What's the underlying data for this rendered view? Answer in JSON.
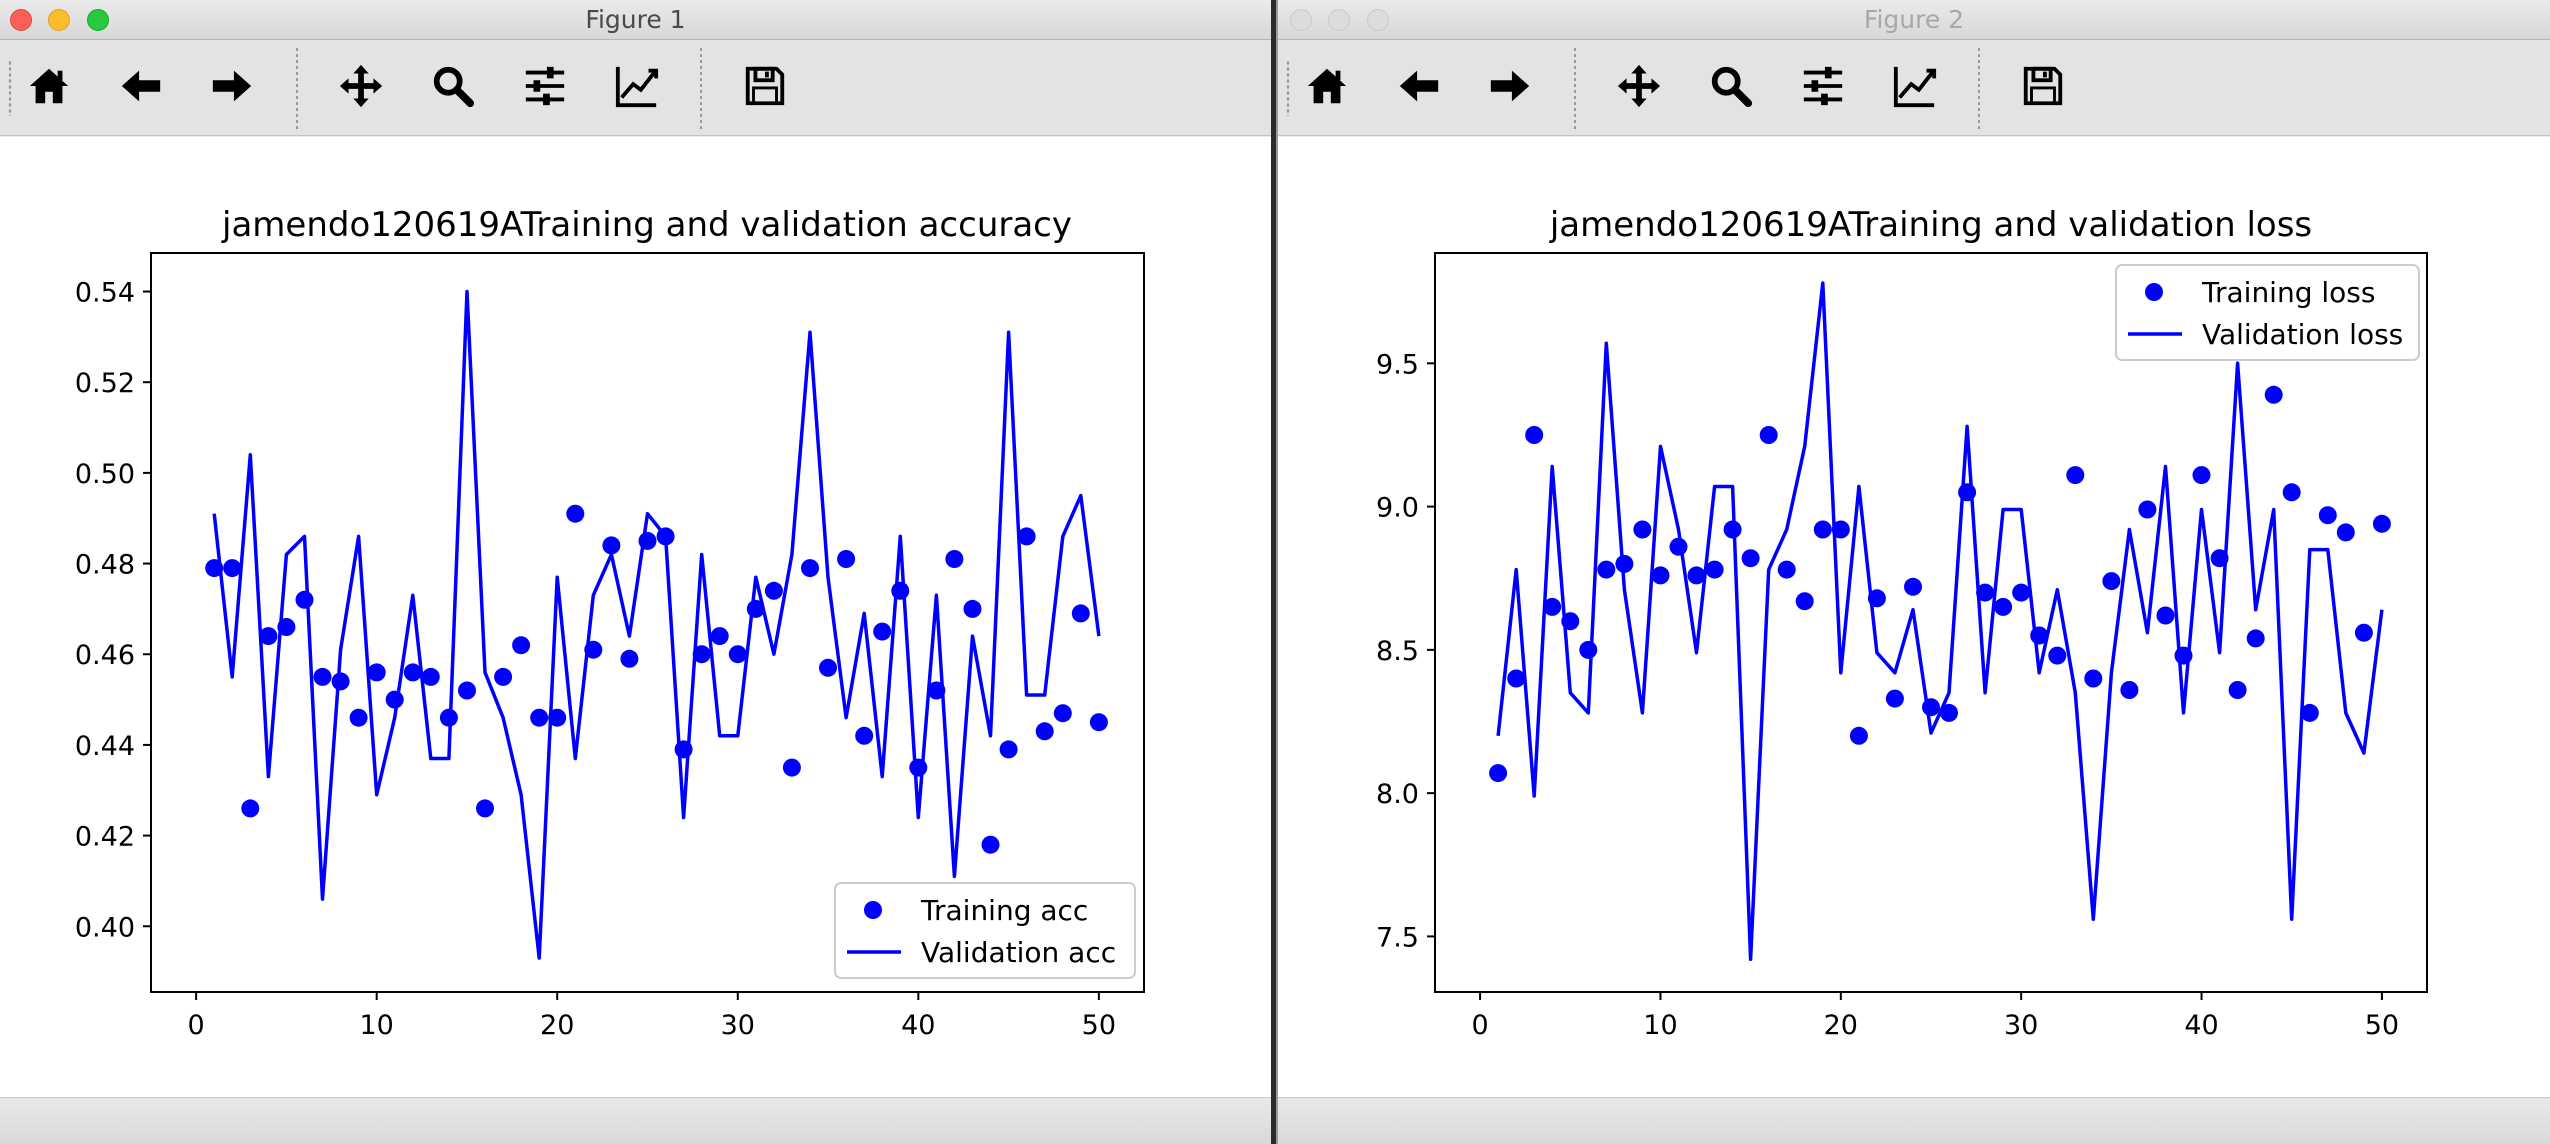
{
  "windows": [
    {
      "title": "Figure 1",
      "active": true,
      "toolbar": [
        "home-icon",
        "back-arrow-icon",
        "forward-arrow-icon",
        "move-icon",
        "zoom-icon",
        "configure-subplots-icon",
        "edit-axes-icon",
        "save-icon"
      ]
    },
    {
      "title": "Figure 2",
      "active": false,
      "toolbar": [
        "home-icon",
        "back-arrow-icon",
        "forward-arrow-icon",
        "move-icon",
        "zoom-icon",
        "configure-subplots-icon",
        "edit-axes-icon",
        "save-icon"
      ]
    }
  ],
  "colors": {
    "series": "#0000ff",
    "text": "#000000",
    "canvas": "#ffffff"
  },
  "chart_data": [
    {
      "type": "scatter+line",
      "title": "jamendo120619ATraining and validation accuracy",
      "xlabel": "",
      "ylabel": "",
      "xlim": [
        -2.5,
        52.5
      ],
      "ylim": [
        0.3855,
        0.5485
      ],
      "xticks": [
        0,
        10,
        20,
        30,
        40,
        50
      ],
      "xtick_labels": [
        "0",
        "10",
        "20",
        "30",
        "40",
        "50"
      ],
      "yticks": [
        0.4,
        0.42,
        0.44,
        0.46,
        0.48,
        0.5,
        0.52,
        0.54
      ],
      "ytick_labels": [
        "0.40",
        "0.42",
        "0.44",
        "0.46",
        "0.48",
        "0.50",
        "0.52",
        "0.54"
      ],
      "legend": {
        "placement": "lower-right",
        "entries": [
          "Training acc",
          "Validation acc"
        ]
      },
      "x": [
        1,
        2,
        3,
        4,
        5,
        6,
        7,
        8,
        9,
        10,
        11,
        12,
        13,
        14,
        15,
        16,
        17,
        18,
        19,
        20,
        21,
        22,
        23,
        24,
        25,
        26,
        27,
        28,
        29,
        30,
        31,
        32,
        33,
        34,
        35,
        36,
        37,
        38,
        39,
        40,
        41,
        42,
        43,
        44,
        45,
        46,
        47,
        48,
        49,
        50
      ],
      "series": [
        {
          "name": "Training acc",
          "style": "dots",
          "values": [
            0.479,
            0.479,
            0.426,
            0.464,
            0.466,
            0.472,
            0.455,
            0.454,
            0.446,
            0.456,
            0.45,
            0.456,
            0.455,
            0.446,
            0.452,
            0.426,
            0.455,
            0.462,
            0.446,
            0.446,
            0.491,
            0.461,
            0.484,
            0.459,
            0.485,
            0.486,
            0.439,
            0.46,
            0.464,
            0.46,
            0.47,
            0.474,
            0.435,
            0.479,
            0.457,
            0.481,
            0.442,
            0.465,
            0.474,
            0.435,
            0.452,
            0.481,
            0.47,
            0.418,
            0.439,
            0.486,
            0.443,
            0.447,
            0.469,
            0.445
          ]
        },
        {
          "name": "Validation acc",
          "style": "line",
          "values": [
            0.491,
            0.455,
            0.504,
            0.433,
            0.482,
            0.486,
            0.406,
            0.461,
            0.486,
            0.429,
            0.446,
            0.473,
            0.437,
            0.437,
            0.54,
            0.456,
            0.446,
            0.429,
            0.393,
            0.477,
            0.437,
            0.473,
            0.482,
            0.464,
            0.491,
            0.486,
            0.424,
            0.482,
            0.442,
            0.442,
            0.477,
            0.46,
            0.482,
            0.531,
            0.477,
            0.446,
            0.469,
            0.433,
            0.486,
            0.424,
            0.473,
            0.411,
            0.464,
            0.442,
            0.531,
            0.451,
            0.451,
            0.486,
            0.495,
            0.464
          ]
        }
      ]
    },
    {
      "type": "scatter+line",
      "title": "jamendo120619ATraining and validation loss",
      "xlabel": "",
      "ylabel": "",
      "xlim": [
        -2.5,
        52.5
      ],
      "ylim": [
        7.306,
        9.885
      ],
      "xticks": [
        0,
        10,
        20,
        30,
        40,
        50
      ],
      "xtick_labels": [
        "0",
        "10",
        "20",
        "30",
        "40",
        "50"
      ],
      "yticks": [
        7.5,
        8.0,
        8.5,
        9.0,
        9.5
      ],
      "ytick_labels": [
        "7.5",
        "8.0",
        "8.5",
        "9.0",
        "9.5"
      ],
      "legend": {
        "placement": "upper-right",
        "entries": [
          "Training loss",
          "Validation loss"
        ]
      },
      "x": [
        1,
        2,
        3,
        4,
        5,
        6,
        7,
        8,
        9,
        10,
        11,
        12,
        13,
        14,
        15,
        16,
        17,
        18,
        19,
        20,
        21,
        22,
        23,
        24,
        25,
        26,
        27,
        28,
        29,
        30,
        31,
        32,
        33,
        34,
        35,
        36,
        37,
        38,
        39,
        40,
        41,
        42,
        43,
        44,
        45,
        46,
        47,
        48,
        49,
        50
      ],
      "series": [
        {
          "name": "Training loss",
          "style": "dots",
          "values": [
            8.07,
            8.4,
            9.25,
            8.65,
            8.6,
            8.5,
            8.78,
            8.8,
            8.92,
            8.76,
            8.86,
            8.76,
            8.78,
            8.92,
            8.82,
            9.25,
            8.78,
            8.67,
            8.92,
            8.92,
            8.2,
            8.68,
            8.33,
            8.72,
            8.3,
            8.28,
            9.05,
            8.7,
            8.65,
            8.7,
            8.55,
            8.48,
            9.11,
            8.4,
            8.74,
            8.36,
            8.99,
            8.62,
            8.48,
            9.11,
            8.82,
            8.36,
            8.54,
            9.39,
            9.05,
            8.28,
            8.97,
            8.91,
            8.56,
            8.94
          ]
        },
        {
          "name": "Validation loss",
          "style": "line",
          "values": [
            8.2,
            8.78,
            7.99,
            9.14,
            8.35,
            8.28,
            9.57,
            8.71,
            8.28,
            9.21,
            8.92,
            8.49,
            9.07,
            9.07,
            7.42,
            8.78,
            8.92,
            9.21,
            9.78,
            8.42,
            9.07,
            8.49,
            8.42,
            8.64,
            8.21,
            8.35,
            9.28,
            8.35,
            8.99,
            8.99,
            8.42,
            8.71,
            8.35,
            7.56,
            8.42,
            8.92,
            8.56,
            9.14,
            8.28,
            8.99,
            8.49,
            9.5,
            8.64,
            8.99,
            7.56,
            8.85,
            8.85,
            8.28,
            8.14,
            8.64
          ]
        }
      ]
    }
  ]
}
